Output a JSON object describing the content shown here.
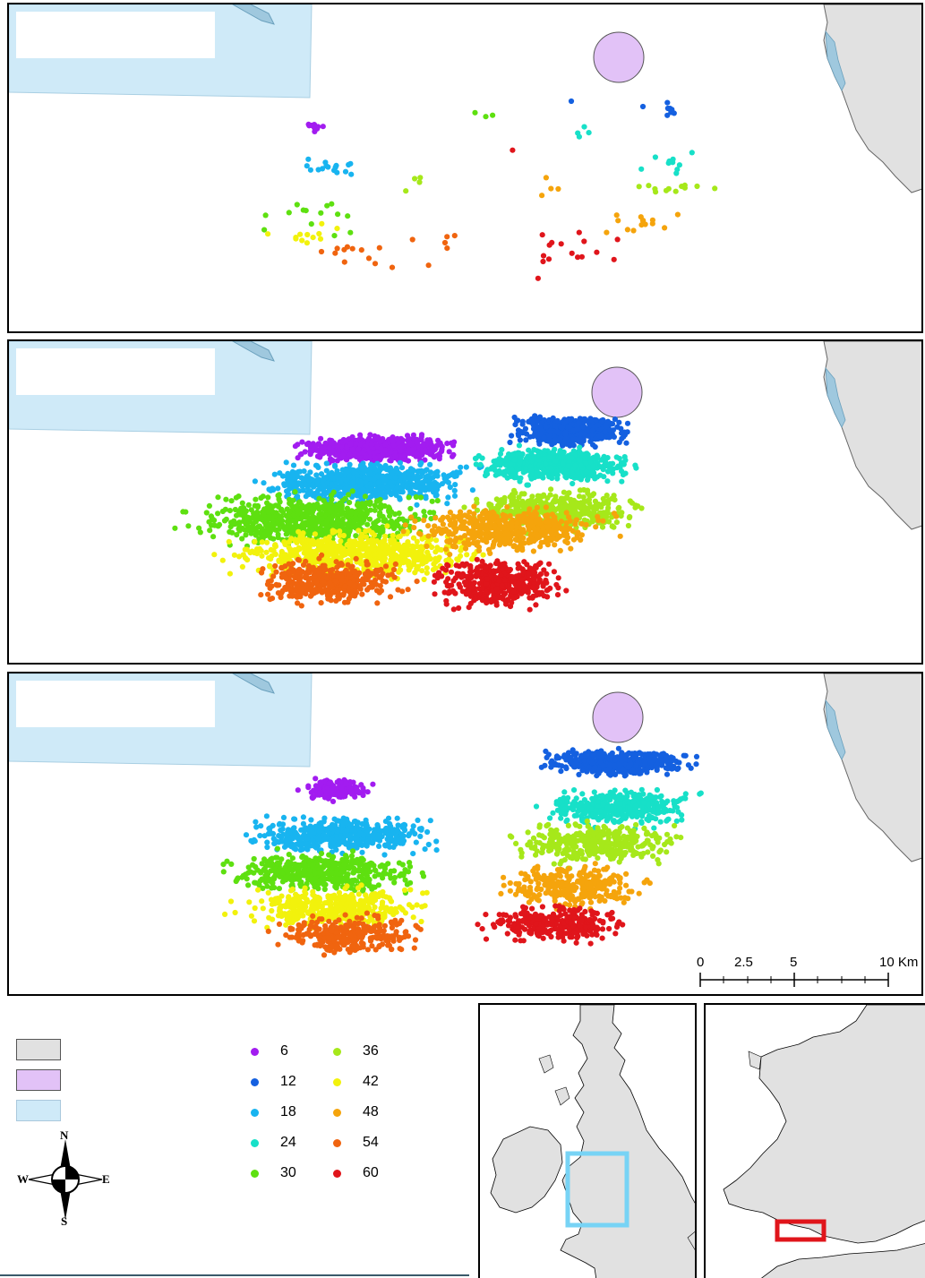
{
  "colors": {
    "land": "#e1e1e1",
    "sea_zone": "#cfeaf8",
    "release_circle": "#e2c2f7",
    "inset_highlight_blue": "#77d3f5",
    "inset_highlight_red": "#e0151b"
  },
  "legend": {
    "swatches": [
      {
        "name": "land-swatch",
        "color": "#e1e1e1"
      },
      {
        "name": "release-area-swatch",
        "color": "#e2c2f7"
      },
      {
        "name": "sea-zone-swatch",
        "color": "#cfeaf8"
      }
    ],
    "classes": [
      {
        "label": "6",
        "color": "#a21cf0"
      },
      {
        "label": "12",
        "color": "#1460e0"
      },
      {
        "label": "18",
        "color": "#18b4f0"
      },
      {
        "label": "24",
        "color": "#17e0c8"
      },
      {
        "label": "30",
        "color": "#5ee010"
      },
      {
        "label": "36",
        "color": "#a6e81a"
      },
      {
        "label": "42",
        "color": "#f2f20c"
      },
      {
        "label": "48",
        "color": "#f5a40c"
      },
      {
        "label": "54",
        "color": "#f0640f"
      },
      {
        "label": "60",
        "color": "#e0151b"
      }
    ]
  },
  "compass": {
    "n": "N",
    "s": "S",
    "e": "E",
    "w": "W"
  },
  "scale_bar": {
    "labels": [
      "0",
      "2.5",
      "5",
      "10 Km"
    ]
  }
}
